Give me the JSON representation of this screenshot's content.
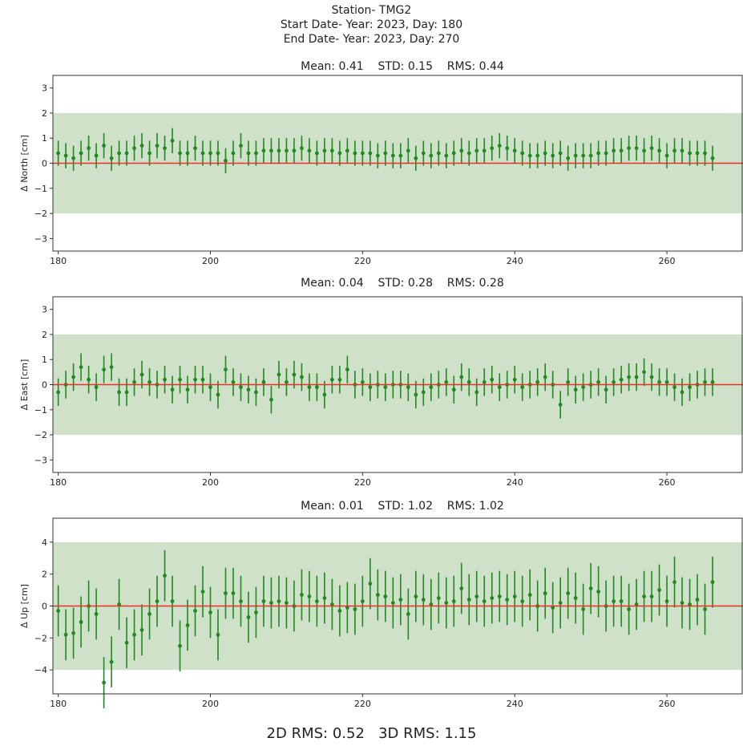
{
  "header": {
    "station": "Station- TMG2",
    "start": "Start Date- Year: 2023, Day: 180",
    "end": "End Date- Year: 2023, Day: 270"
  },
  "footer": {
    "rms_2d": "2D RMS: 0.52",
    "rms_3d": "3D RMS: 1.15"
  },
  "colors": {
    "band": "#cfe1c9",
    "zero_line": "#e8312a",
    "points": "#1f8a1f"
  },
  "chart_data": [
    {
      "type": "scatter",
      "ylabel": "Δ North [cm]",
      "stats": "Mean: 0.41    STD: 0.15    RMS: 0.44",
      "xlim": [
        179.3,
        270
      ],
      "ylim": [
        -3.5,
        3.5
      ],
      "yticks": [
        3,
        2,
        1,
        0,
        -1,
        -2,
        -3
      ],
      "xticks": [
        180,
        200,
        220,
        240,
        260
      ],
      "band": [
        -2,
        2
      ],
      "x": [
        180,
        181,
        182,
        183,
        184,
        185,
        186,
        187,
        188,
        189,
        190,
        191,
        192,
        193,
        194,
        195,
        196,
        197,
        198,
        199,
        200,
        201,
        202,
        203,
        204,
        205,
        206,
        207,
        208,
        209,
        210,
        211,
        212,
        213,
        214,
        215,
        216,
        217,
        218,
        219,
        220,
        221,
        222,
        223,
        224,
        225,
        226,
        227,
        228,
        229,
        230,
        231,
        232,
        233,
        234,
        235,
        236,
        237,
        238,
        239,
        240,
        241,
        242,
        243,
        244,
        245,
        246,
        247,
        248,
        249,
        250,
        251,
        252,
        253,
        254,
        255,
        256,
        257,
        258,
        259,
        260,
        261,
        262,
        263,
        264,
        265,
        266
      ],
      "y": [
        0.4,
        0.3,
        0.2,
        0.4,
        0.6,
        0.3,
        0.7,
        0.2,
        0.4,
        0.4,
        0.6,
        0.7,
        0.4,
        0.7,
        0.6,
        0.9,
        0.4,
        0.4,
        0.6,
        0.4,
        0.4,
        0.4,
        0.1,
        0.4,
        0.7,
        0.4,
        0.4,
        0.5,
        0.5,
        0.5,
        0.5,
        0.5,
        0.6,
        0.5,
        0.4,
        0.5,
        0.5,
        0.4,
        0.5,
        0.4,
        0.4,
        0.4,
        0.3,
        0.4,
        0.3,
        0.3,
        0.5,
        0.2,
        0.4,
        0.3,
        0.4,
        0.3,
        0.4,
        0.5,
        0.4,
        0.5,
        0.5,
        0.6,
        0.7,
        0.6,
        0.5,
        0.4,
        0.3,
        0.3,
        0.4,
        0.3,
        0.4,
        0.2,
        0.3,
        0.3,
        0.3,
        0.4,
        0.4,
        0.5,
        0.5,
        0.6,
        0.6,
        0.5,
        0.6,
        0.5,
        0.3,
        0.5,
        0.5,
        0.4,
        0.4,
        0.4,
        0.2
      ],
      "err": 0.5
    },
    {
      "type": "scatter",
      "ylabel": "Δ East [cm]",
      "stats": "Mean: 0.04    STD: 0.28    RMS: 0.28",
      "xlim": [
        179.3,
        270
      ],
      "ylim": [
        -3.5,
        3.5
      ],
      "yticks": [
        3,
        2,
        1,
        0,
        -1,
        -2,
        -3
      ],
      "xticks": [
        180,
        200,
        220,
        240,
        260
      ],
      "band": [
        -2,
        2
      ],
      "x": [
        180,
        181,
        182,
        183,
        184,
        185,
        186,
        187,
        188,
        189,
        190,
        191,
        192,
        193,
        194,
        195,
        196,
        197,
        198,
        199,
        200,
        201,
        202,
        203,
        204,
        205,
        206,
        207,
        208,
        209,
        210,
        211,
        212,
        213,
        214,
        215,
        216,
        217,
        218,
        219,
        220,
        221,
        222,
        223,
        224,
        225,
        226,
        227,
        228,
        229,
        230,
        231,
        232,
        233,
        234,
        235,
        236,
        237,
        238,
        239,
        240,
        241,
        242,
        243,
        244,
        245,
        246,
        247,
        248,
        249,
        250,
        251,
        252,
        253,
        254,
        255,
        256,
        257,
        258,
        259,
        260,
        261,
        262,
        263,
        264,
        265,
        266
      ],
      "y": [
        -0.3,
        0.0,
        0.3,
        0.7,
        0.2,
        -0.1,
        0.6,
        0.7,
        -0.3,
        -0.3,
        0.1,
        0.4,
        0.1,
        0.0,
        0.2,
        -0.2,
        0.2,
        -0.2,
        0.2,
        0.2,
        -0.1,
        -0.4,
        0.6,
        0.1,
        -0.1,
        -0.2,
        -0.3,
        0.1,
        -0.6,
        0.4,
        0.1,
        0.4,
        0.3,
        -0.1,
        -0.1,
        -0.4,
        0.2,
        0.2,
        0.6,
        0.0,
        0.1,
        -0.1,
        0.0,
        -0.1,
        0.0,
        0.0,
        -0.1,
        -0.4,
        -0.3,
        -0.1,
        0.0,
        0.1,
        -0.2,
        0.3,
        0.1,
        -0.3,
        0.1,
        0.2,
        -0.1,
        0.0,
        0.2,
        -0.1,
        0.0,
        0.1,
        0.3,
        0.0,
        -0.8,
        0.1,
        -0.2,
        -0.1,
        0.0,
        0.1,
        -0.2,
        0.1,
        0.2,
        0.3,
        0.3,
        0.5,
        0.3,
        0.1,
        0.1,
        -0.1,
        -0.3,
        -0.1,
        0.0,
        0.1,
        0.1
      ],
      "err": 0.55
    },
    {
      "type": "scatter",
      "ylabel": "Δ Up [cm]",
      "stats": "Mean: 0.01    STD: 1.02    RMS: 1.02",
      "xlim": [
        179.3,
        270
      ],
      "ylim": [
        -5.5,
        5.5
      ],
      "yticks": [
        4,
        2,
        0,
        -2,
        -4
      ],
      "xticks": [
        180,
        200,
        220,
        240,
        260
      ],
      "band": [
        -4,
        4
      ],
      "x": [
        180,
        181,
        182,
        183,
        184,
        185,
        186,
        187,
        188,
        189,
        190,
        191,
        192,
        193,
        194,
        195,
        196,
        197,
        198,
        199,
        200,
        201,
        202,
        203,
        204,
        205,
        206,
        207,
        208,
        209,
        210,
        211,
        212,
        213,
        214,
        215,
        216,
        217,
        218,
        219,
        220,
        221,
        222,
        223,
        224,
        225,
        226,
        227,
        228,
        229,
        230,
        231,
        232,
        233,
        234,
        235,
        236,
        237,
        238,
        239,
        240,
        241,
        242,
        243,
        244,
        245,
        246,
        247,
        248,
        249,
        250,
        251,
        252,
        253,
        254,
        255,
        256,
        257,
        258,
        259,
        260,
        261,
        262,
        263,
        264,
        265,
        266
      ],
      "y": [
        -0.3,
        -1.8,
        -1.7,
        -1.0,
        0.0,
        -0.5,
        -4.8,
        -3.5,
        0.1,
        -2.3,
        -1.8,
        -1.5,
        -0.5,
        0.3,
        1.9,
        0.3,
        -2.5,
        -1.2,
        -0.3,
        0.9,
        -0.4,
        -1.8,
        0.8,
        0.8,
        0.3,
        -0.7,
        -0.4,
        0.3,
        0.2,
        0.3,
        0.2,
        0.0,
        0.7,
        0.6,
        0.3,
        0.5,
        0.1,
        -0.3,
        -0.1,
        -0.2,
        0.3,
        1.4,
        0.7,
        0.6,
        0.2,
        0.4,
        -0.5,
        0.6,
        0.4,
        0.1,
        0.5,
        0.2,
        0.3,
        1.1,
        0.4,
        0.6,
        0.3,
        0.5,
        0.6,
        0.4,
        0.6,
        0.3,
        0.7,
        0.0,
        0.8,
        -0.1,
        0.2,
        0.8,
        0.5,
        -0.2,
        1.1,
        0.9,
        0.0,
        0.3,
        0.3,
        -0.2,
        0.1,
        0.6,
        0.6,
        1.0,
        0.3,
        1.5,
        0.2,
        0.1,
        0.4,
        -0.2,
        1.5
      ],
      "err": 1.6
    }
  ]
}
